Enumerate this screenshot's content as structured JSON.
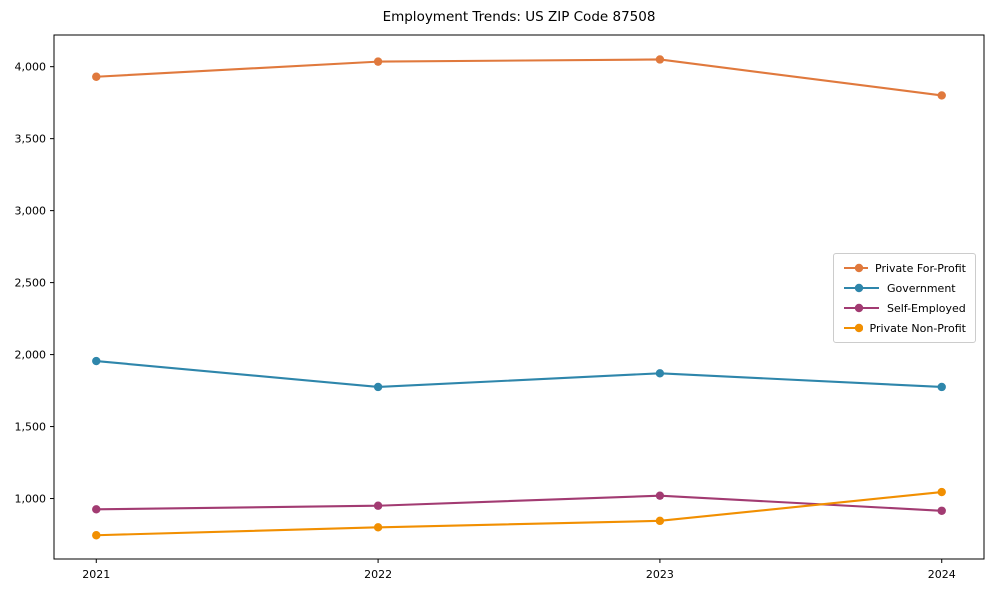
{
  "chart_data": {
    "type": "line",
    "title": "Employment Trends: US ZIP Code 87508",
    "categories": [
      "2021",
      "2022",
      "2023",
      "2024"
    ],
    "series": [
      {
        "name": "Private For-Profit",
        "color": "#E0793D",
        "values": [
          3930,
          4035,
          4050,
          3800
        ]
      },
      {
        "name": "Government",
        "color": "#2E86AB",
        "values": [
          1955,
          1775,
          1870,
          1775
        ]
      },
      {
        "name": "Self-Employed",
        "color": "#A23B72",
        "values": [
          925,
          950,
          1020,
          915
        ]
      },
      {
        "name": "Private Non-Profit",
        "color": "#F18F01",
        "values": [
          745,
          800,
          845,
          1045
        ]
      }
    ],
    "xlabel": "",
    "ylabel": "",
    "ylim": [
      580,
      4220
    ],
    "yticks": [
      1000,
      1500,
      2000,
      2500,
      3000,
      3500,
      4000
    ],
    "ytick_labels": [
      "1,000",
      "1,500",
      "2,000",
      "2,500",
      "3,000",
      "3,500",
      "4,000"
    ],
    "grid": false,
    "legend_position": "center-right",
    "marker": "circle",
    "spine_color": "#000000",
    "background": "#ffffff"
  }
}
